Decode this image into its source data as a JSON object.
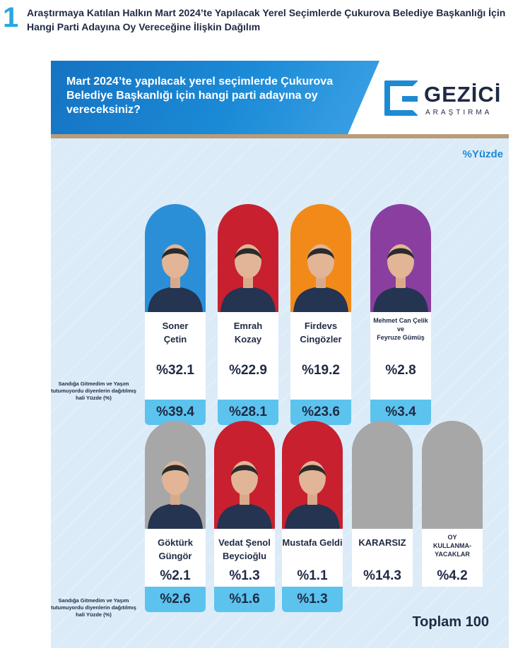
{
  "figure": {
    "number": "1",
    "title": "Araştırmaya Katılan Halkın Mart 2024’te Yapılacak Yerel Seçimlerde Çukurova Belediye Başkanlığı İçin Hangi Parti Adayına Oy Vereceğine İlişkin Dağılım"
  },
  "banner": {
    "question": "Mart 2024’te yapılacak yerel seçimlerde Çukurova Belediye Başkanlığı için hangi parti adayına oy vereceksiniz?",
    "logo_name": "GEZİCİ",
    "logo_sub": "ARAŞTIRMA"
  },
  "unit_label": "%Yüzde",
  "note_text": "Sandığa Gitmedim ve Yaşım tutumuyordu diyenlerin dağıtılmış hali Yüzde (%)",
  "total_label": "Toplam 100",
  "colors": {
    "iyi": "#2b8fd8",
    "chp": "#c8202f",
    "mhp": "#f28a1a",
    "dem": "#8a3fa0",
    "grey": "#a7a7a7",
    "accent": "#5cc3ee"
  },
  "chart_data": {
    "type": "table",
    "title": "Mart 2024’te yapılacak yerel seçimlerde Çukurova Belediye Başkanlığı için hangi parti adayına oy vereceksiniz?",
    "unit": "%",
    "categories": [
      "Soner Çetin",
      "Emrah Kozay",
      "Firdevs Cingözler",
      "Mehmet Can Çelik ve Feyruze Gümüş",
      "Göktürk Güngör",
      "Vedat Şenol Beycioğlu",
      "Mustafa Geldi",
      "KARARSIZ",
      "OY KULLANMA-YACAKLAR"
    ],
    "cards": [
      {
        "name_lines": [
          "Soner",
          "Çetin"
        ],
        "value": "%32.1",
        "value2": "%39.4",
        "color": "#2b8fd8",
        "row": 1,
        "small": false,
        "photo": true
      },
      {
        "name_lines": [
          "Emrah",
          "Kozay"
        ],
        "value": "%22.9",
        "value2": "%28.1",
        "color": "#c8202f",
        "row": 1,
        "small": false,
        "photo": true
      },
      {
        "name_lines": [
          "Firdevs",
          "Cingözler"
        ],
        "value": "%19.2",
        "value2": "%23.6",
        "color": "#f28a1a",
        "row": 1,
        "small": false,
        "photo": true
      },
      {
        "name_lines": [
          "Mehmet Can Çelik",
          "ve",
          "Feyruze Gümüş"
        ],
        "value": "%2.8",
        "value2": "%3.4",
        "color": "#8a3fa0",
        "row": 1,
        "small": true,
        "photo": true
      },
      {
        "name_lines": [
          "Göktürk",
          "Güngör"
        ],
        "value": "%2.1",
        "value2": "%2.6",
        "color": "#a7a7a7",
        "row": 2,
        "small": false,
        "photo": true
      },
      {
        "name_lines": [
          "Vedat Şenol",
          "Beycioğlu"
        ],
        "value": "%1.3",
        "value2": "%1.6",
        "color": "#c8202f",
        "row": 2,
        "small": false,
        "photo": true
      },
      {
        "name_lines": [
          "Mustafa Geldi"
        ],
        "value": "%1.1",
        "value2": "%1.3",
        "color": "#c8202f",
        "row": 2,
        "small": false,
        "photo": true
      },
      {
        "name_lines": [
          "KARARSIZ"
        ],
        "value": "%14.3",
        "value2": "",
        "color": "#a7a7a7",
        "row": 2,
        "small": false,
        "photo": false
      },
      {
        "name_lines": [
          "OY",
          "KULLANMA-",
          "YACAKLAR"
        ],
        "value": "%4.2",
        "value2": "",
        "color": "#a7a7a7",
        "row": 2,
        "small": true,
        "photo": false
      }
    ],
    "series": [
      {
        "name": "%Yüzde",
        "values": [
          32.1,
          22.9,
          19.2,
          2.8,
          2.1,
          1.3,
          1.1,
          14.3,
          4.2
        ]
      },
      {
        "name": "Sandığa Gitmedim ve Yaşım tutumuyordu diyenlerin dağıtılmış hali Yüzde (%)",
        "values": [
          39.4,
          28.1,
          23.6,
          3.4,
          2.6,
          1.6,
          1.3,
          null,
          null
        ]
      }
    ],
    "total": 100
  }
}
